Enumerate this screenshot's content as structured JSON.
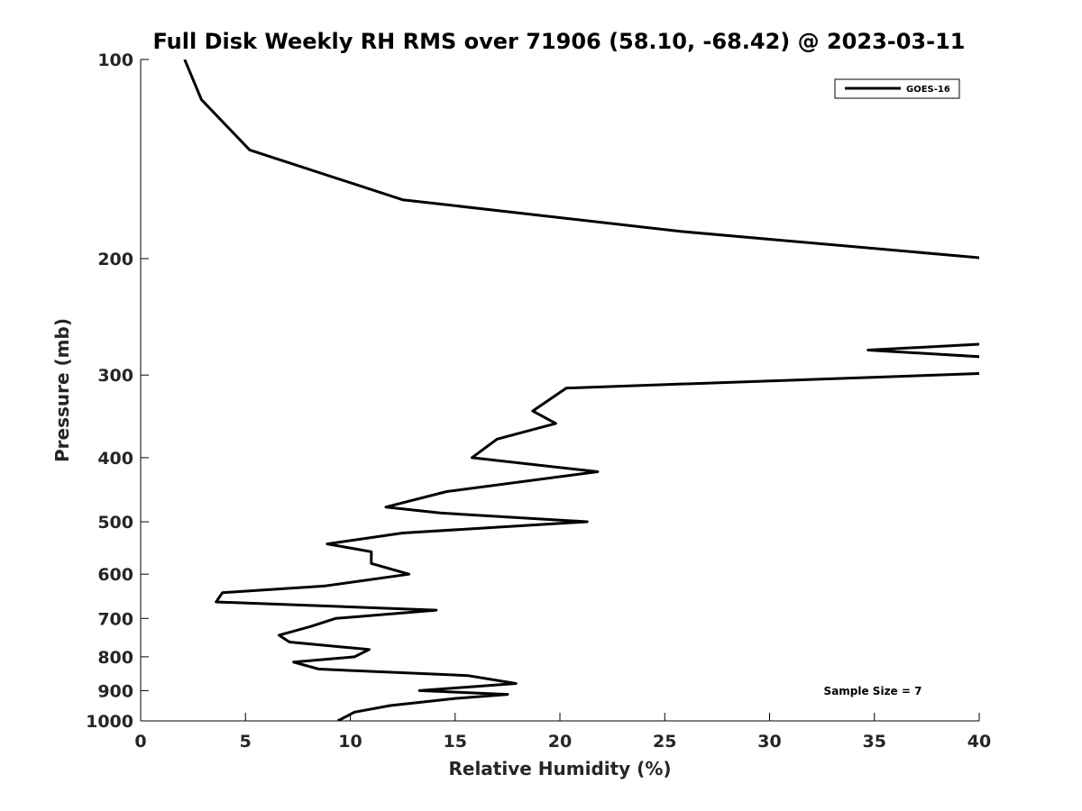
{
  "chart_data": {
    "type": "line",
    "title": "Full Disk Weekly RH RMS over 71906 (58.10, -68.42) @ 2023-03-11",
    "xlabel": "Relative Humidity (%)",
    "ylabel": "Pressure (mb)",
    "xlim": [
      0,
      40
    ],
    "ylim": [
      1000,
      100
    ],
    "yscale": "log",
    "grid": false,
    "legend_position": "top-right",
    "x_ticks": [
      0,
      5,
      10,
      15,
      20,
      25,
      30,
      35,
      40
    ],
    "y_ticks": [
      100,
      200,
      300,
      400,
      500,
      600,
      700,
      800,
      900,
      1000
    ],
    "annotation": "Sample Size = 7",
    "line_color": "#000000",
    "series": [
      {
        "name": "GOES-16",
        "points": [
          [
            2.1,
            100
          ],
          [
            2.9,
            115
          ],
          [
            5.2,
            137
          ],
          [
            12.5,
            163
          ],
          [
            25.8,
            182
          ],
          [
            40.5,
            200
          ],
          [
            40.5,
            269
          ],
          [
            34.7,
            275
          ],
          [
            40.5,
            282
          ],
          [
            40.5,
            298
          ],
          [
            20.3,
            314
          ],
          [
            18.7,
            340
          ],
          [
            19.8,
            355
          ],
          [
            17.0,
            375
          ],
          [
            15.8,
            400
          ],
          [
            21.8,
            420
          ],
          [
            14.6,
            450
          ],
          [
            11.7,
            475
          ],
          [
            14.3,
            485
          ],
          [
            21.3,
            500
          ],
          [
            12.5,
            520
          ],
          [
            8.9,
            540
          ],
          [
            11.0,
            555
          ],
          [
            11.0,
            578
          ],
          [
            12.8,
            600
          ],
          [
            8.8,
            625
          ],
          [
            3.9,
            640
          ],
          [
            3.6,
            661
          ],
          [
            14.1,
            680
          ],
          [
            9.3,
            700
          ],
          [
            8.1,
            720
          ],
          [
            6.6,
            742
          ],
          [
            7.1,
            760
          ],
          [
            10.9,
            780
          ],
          [
            10.2,
            800
          ],
          [
            7.3,
            815
          ],
          [
            8.5,
            835
          ],
          [
            15.6,
            854
          ],
          [
            17.9,
            878
          ],
          [
            13.3,
            900
          ],
          [
            17.5,
            912
          ],
          [
            15.0,
            925
          ],
          [
            11.9,
            948
          ],
          [
            10.2,
            970
          ],
          [
            9.4,
            1000
          ]
        ]
      }
    ]
  }
}
